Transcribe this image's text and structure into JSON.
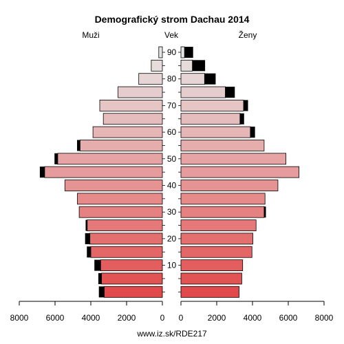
{
  "chart_data": {
    "type": "bar",
    "title": "Demografický strom Dachau 2014",
    "left_label": "Muži",
    "center_label": "Vek",
    "right_label": "Ženy",
    "source": "www.iz.sk/RDE217",
    "age_tick_labels": [
      "10",
      "20",
      "30",
      "40",
      "50",
      "60",
      "70",
      "80",
      "90"
    ],
    "x_tick_labels_left": [
      "8000",
      "6000",
      "4000",
      "2000",
      "0"
    ],
    "x_tick_labels_right": [
      "0",
      "2000",
      "4000",
      "6000",
      "8000"
    ],
    "xlim": [
      0,
      8000
    ],
    "age_groups": [
      "0-4",
      "5-9",
      "10-14",
      "15-19",
      "20-24",
      "25-29",
      "30-34",
      "35-39",
      "40-44",
      "45-49",
      "50-54",
      "55-59",
      "60-64",
      "65-69",
      "70-74",
      "75-79",
      "80-84",
      "85-89",
      "90+"
    ],
    "series": [
      {
        "name": "Muži",
        "values": [
          3250,
          3400,
          3450,
          4000,
          4050,
          4200,
          4650,
          4750,
          5450,
          6580,
          5850,
          4600,
          3880,
          3300,
          3500,
          2480,
          1320,
          620,
          200
        ],
        "extra": [
          300,
          180,
          350,
          220,
          270,
          90,
          0,
          0,
          0,
          270,
          180,
          170,
          0,
          0,
          0,
          0,
          0,
          0,
          0
        ]
      },
      {
        "name": "Ženy",
        "values": [
          3250,
          3400,
          3450,
          3970,
          4020,
          4200,
          4650,
          4700,
          5420,
          6600,
          5870,
          4650,
          3880,
          3300,
          3500,
          2480,
          1320,
          640,
          200
        ],
        "extra": [
          0,
          0,
          0,
          0,
          0,
          0,
          100,
          0,
          0,
          0,
          0,
          0,
          260,
          230,
          250,
          530,
          620,
          710,
          480
        ]
      }
    ],
    "colors": [
      "#e14a4a",
      "#e25454",
      "#e35e5e",
      "#e46767",
      "#e46f6f",
      "#e57878",
      "#e58181",
      "#e68a8a",
      "#e69393",
      "#e69c9c",
      "#e6a4a4",
      "#e6adad",
      "#e6b5b5",
      "#e6bdbd",
      "#e6c5c5",
      "#e6cdcd",
      "#e6d5d5",
      "#e6dcdc",
      "#e6e3e3"
    ]
  }
}
